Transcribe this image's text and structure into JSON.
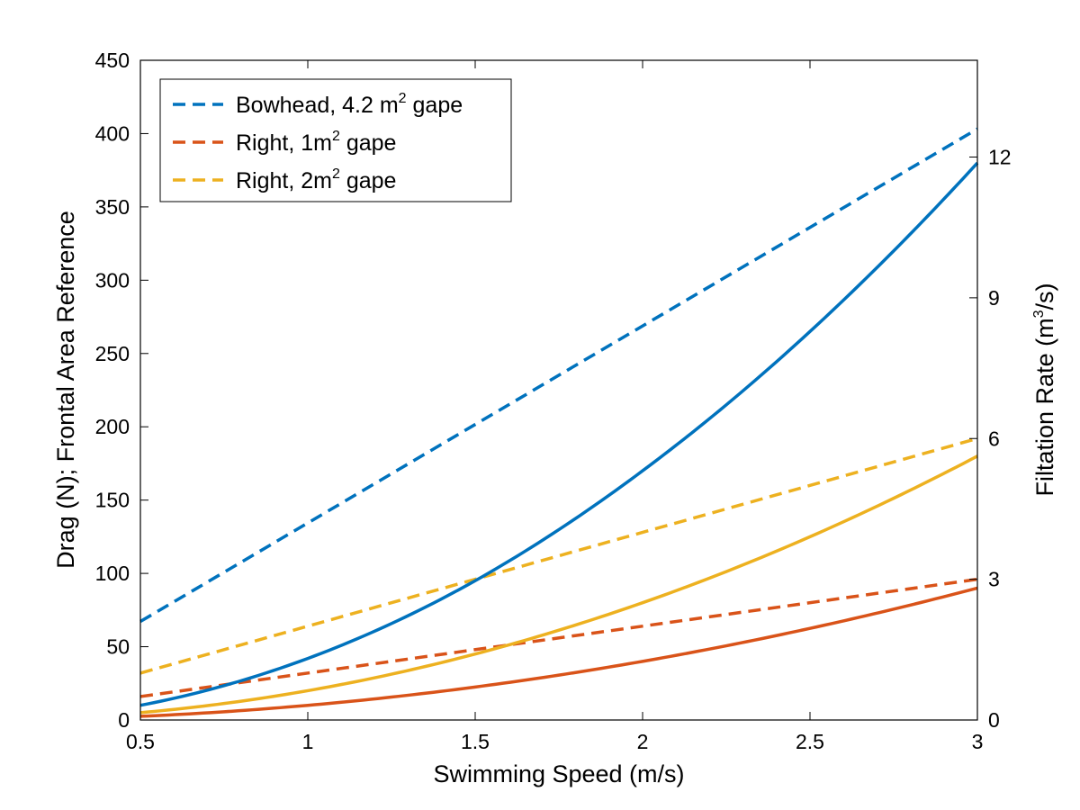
{
  "chart_data": {
    "type": "line",
    "xlabel": "Swimming Speed (m/s)",
    "ylabel_left": "Drag (N); Frontal Area Reference",
    "ylabel_right": {
      "prefix": "Filtation Rate (m",
      "sup": "3",
      "suffix": "/s)"
    },
    "xlim": [
      0.5,
      3
    ],
    "ylim_left": [
      0,
      450
    ],
    "ylim_right": [
      0,
      14.0625
    ],
    "x_ticks": [
      "0.5",
      "1",
      "1.5",
      "2",
      "2.5",
      "3"
    ],
    "y_left_ticks": [
      "0",
      "50",
      "100",
      "150",
      "200",
      "250",
      "300",
      "350",
      "400",
      "450"
    ],
    "y_right_ticks": [
      "0",
      "3",
      "6",
      "9",
      "12"
    ],
    "grid": false,
    "legend_position": "top-left",
    "legend": [
      {
        "text_before": "Bowhead, 4.2 m",
        "sup": "2",
        "text_after": " gape",
        "color": "#0072BD"
      },
      {
        "text_before": "Right, 1m",
        "sup": "2",
        "text_after": " gape",
        "color": "#D95319"
      },
      {
        "text_before": "Right, 2m",
        "sup": "2",
        "text_after": " gape",
        "color": "#EDB120"
      }
    ],
    "drag_series": [
      {
        "color": "#0072BD",
        "axis": "left",
        "style": "solid",
        "x": [
          0.5,
          1.0,
          1.5,
          2.0,
          2.5,
          3.0
        ],
        "y": [
          10,
          42,
          95,
          170,
          265,
          380
        ]
      },
      {
        "color": "#D95319",
        "axis": "left",
        "style": "solid",
        "x": [
          0.5,
          1.0,
          1.5,
          2.0,
          2.5,
          3.0
        ],
        "y": [
          2.5,
          10,
          22.5,
          40,
          62.5,
          90
        ]
      },
      {
        "color": "#EDB120",
        "axis": "left",
        "style": "solid",
        "x": [
          0.5,
          1.0,
          1.5,
          2.0,
          2.5,
          3.0
        ],
        "y": [
          5,
          20,
          45,
          80,
          125,
          180
        ]
      }
    ],
    "filtration_series": [
      {
        "color": "#0072BD",
        "axis": "right",
        "style": "dashed",
        "x": [
          0.5,
          3.0
        ],
        "y": [
          2.1,
          12.6
        ]
      },
      {
        "color": "#D95319",
        "axis": "right",
        "style": "dashed",
        "x": [
          0.5,
          3.0
        ],
        "y": [
          0.5,
          3.0
        ]
      },
      {
        "color": "#EDB120",
        "axis": "right",
        "style": "dashed",
        "x": [
          0.5,
          3.0
        ],
        "y": [
          1.0,
          6.0
        ]
      }
    ]
  }
}
